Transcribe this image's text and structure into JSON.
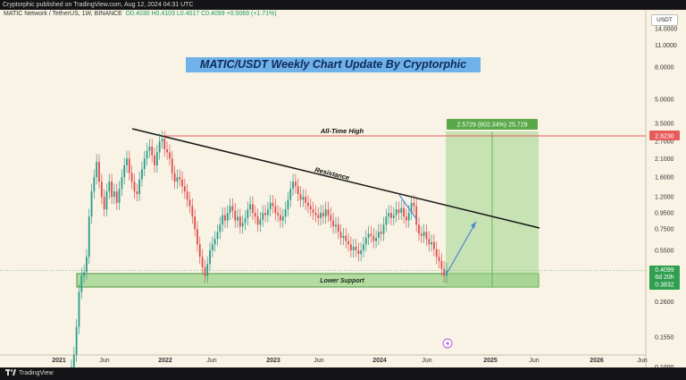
{
  "publisher": "Cryptorphic published on TradingView.com, Aug 12, 2024 04:31 UTC",
  "symbol": {
    "title": "MATIC Network / TetherUS, 1W, BINANCE",
    "ohlc": "O0.4030 H0.4103 L0.4017 C0.4099 +0.0069 (+1.71%)"
  },
  "currency_button": "USDT",
  "chart_title": "MATIC/USDT Weekly Chart Update By Cryptorphic",
  "footer_brand": "TradingView",
  "annotations": {
    "all_time_high": "All-Time High",
    "resistance": "Resistance",
    "lower_support": "Lower Support",
    "target_box": "2.5729 (802.34%) 25,729"
  },
  "price_labels": {
    "ath": "2.8230",
    "current": "0.4099",
    "countdown": "6d 20h",
    "support": "0.3832"
  },
  "colors": {
    "background": "#f8f3e5",
    "up": "#2b9a88",
    "down": "#e04c4c",
    "support_zone": "#7cc96b",
    "target_zone": "#9fd48a",
    "ath_line": "#e85b5b",
    "resistance_line": "#151515",
    "projection": "#4f8ad6"
  },
  "chart_data": {
    "type": "candlestick",
    "scale": "log",
    "y_ticks": [
      14.0,
      11.0,
      8.0,
      5.0,
      3.5,
      2.7,
      2.1,
      1.6,
      1.2,
      0.95,
      0.75,
      0.55,
      0.41,
      0.26,
      0.155,
      0.1
    ],
    "y_tick_labels": [
      "14.0000",
      "11.0000",
      "8.0000",
      "5.0000",
      "3.5000",
      "2.7000",
      "2.1000",
      "1.6000",
      "1.2000",
      "0.9500",
      "0.7500",
      "0.5500",
      "0.4100",
      "0.2600",
      "0.1550",
      "0.1000"
    ],
    "x_ticks": [
      "2021",
      "Jun",
      "2022",
      "Jun",
      "2023",
      "Jun",
      "2024",
      "Jun",
      "2025",
      "Jun",
      "2026",
      "Jun"
    ],
    "ylim": [
      0.09,
      20
    ],
    "key_levels": {
      "all_time_high": 2.823,
      "current": 0.4099,
      "lower_support_top": 0.41,
      "lower_support_bottom": 0.3832,
      "target": 2.5729
    },
    "target_gain_pct": 802.34,
    "closes": [
      0.1,
      0.12,
      0.18,
      0.3,
      0.38,
      0.4,
      0.5,
      0.9,
      1.3,
      1.6,
      2.0,
      1.5,
      1.2,
      1.0,
      1.3,
      1.5,
      1.2,
      1.3,
      1.1,
      1.35,
      1.6,
      1.9,
      2.1,
      1.7,
      1.5,
      1.3,
      1.25,
      1.55,
      1.8,
      2.1,
      2.35,
      2.5,
      2.2,
      1.9,
      2.3,
      2.7,
      2.8,
      2.4,
      2.3,
      2.1,
      1.7,
      1.5,
      1.6,
      1.55,
      1.4,
      1.3,
      1.15,
      1.05,
      0.9,
      0.75,
      0.6,
      0.5,
      0.43,
      0.38,
      0.45,
      0.55,
      0.6,
      0.65,
      0.72,
      0.8,
      0.92,
      0.85,
      0.95,
      1.05,
      0.98,
      0.85,
      0.9,
      0.78,
      0.82,
      0.88,
      1.0,
      1.08,
      0.95,
      0.9,
      0.8,
      0.86,
      0.95,
      0.92,
      1.0,
      1.1,
      1.05,
      0.95,
      0.92,
      0.85,
      0.9,
      1.0,
      1.15,
      1.35,
      1.5,
      1.4,
      1.25,
      1.15,
      1.2,
      1.1,
      1.05,
      1.0,
      0.95,
      0.92,
      0.88,
      0.95,
      0.9,
      1.0,
      0.92,
      0.85,
      0.78,
      0.8,
      0.72,
      0.66,
      0.68,
      0.63,
      0.6,
      0.55,
      0.58,
      0.55,
      0.52,
      0.55,
      0.6,
      0.66,
      0.7,
      0.68,
      0.63,
      0.66,
      0.72,
      0.7,
      0.8,
      0.9,
      0.95,
      0.88,
      0.92,
      1.0,
      0.95,
      1.02,
      0.9,
      0.85,
      0.95,
      1.1,
      1.05,
      0.8,
      0.7,
      0.68,
      0.72,
      0.65,
      0.6,
      0.62,
      0.56,
      0.5,
      0.47,
      0.42,
      0.38,
      0.4099
    ]
  }
}
